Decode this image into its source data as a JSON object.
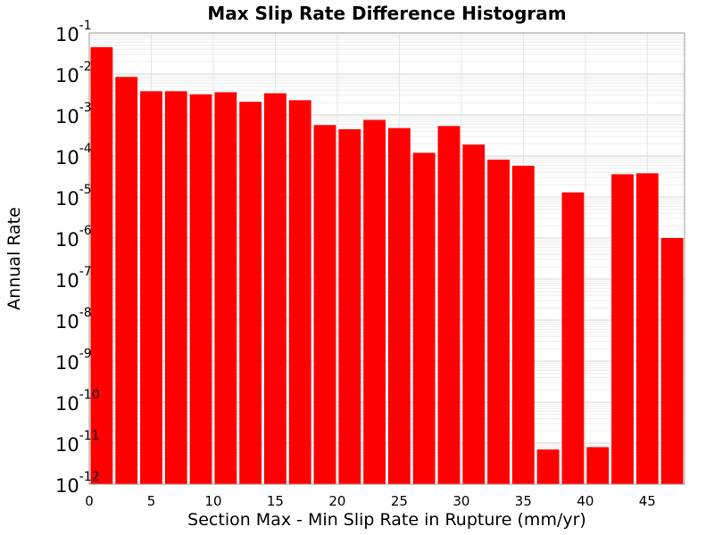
{
  "chart_data": {
    "type": "bar",
    "title": "Max Slip Rate Difference Histogram",
    "xlabel": "Section Max - Min Slip Rate in Rupture (mm/yr)",
    "ylabel": "Annual Rate",
    "yscale": "log",
    "ylim": [
      1e-12,
      0.1
    ],
    "xlim": [
      0,
      48
    ],
    "bin_width": 2,
    "x_ticks": [
      0,
      5,
      10,
      15,
      20,
      25,
      30,
      35,
      40,
      45
    ],
    "y_tick_exponents": [
      -12,
      -11,
      -10,
      -9,
      -8,
      -7,
      -6,
      -5,
      -4,
      -3,
      -2,
      -1
    ],
    "grid": true,
    "legend": "none",
    "bar_color": "#ff0000",
    "bins": [
      {
        "x": 1,
        "value": 0.045
      },
      {
        "x": 3,
        "value": 0.0085
      },
      {
        "x": 5,
        "value": 0.0038
      },
      {
        "x": 7,
        "value": 0.0038
      },
      {
        "x": 9,
        "value": 0.0032
      },
      {
        "x": 11,
        "value": 0.0036
      },
      {
        "x": 13,
        "value": 0.0021
      },
      {
        "x": 15,
        "value": 0.0034
      },
      {
        "x": 17,
        "value": 0.0023
      },
      {
        "x": 19,
        "value": 0.00057
      },
      {
        "x": 21,
        "value": 0.00045
      },
      {
        "x": 23,
        "value": 0.00076
      },
      {
        "x": 25,
        "value": 0.00048
      },
      {
        "x": 27,
        "value": 0.00012
      },
      {
        "x": 29,
        "value": 0.00054
      },
      {
        "x": 31,
        "value": 0.00019
      },
      {
        "x": 33,
        "value": 8.2e-05
      },
      {
        "x": 35,
        "value": 5.8e-05
      },
      {
        "x": 37,
        "value": 7e-12
      },
      {
        "x": 39,
        "value": 1.3e-05
      },
      {
        "x": 41,
        "value": 8e-12
      },
      {
        "x": 43,
        "value": 3.6e-05
      },
      {
        "x": 45,
        "value": 3.8e-05
      },
      {
        "x": 47,
        "value": 1e-06
      }
    ]
  }
}
